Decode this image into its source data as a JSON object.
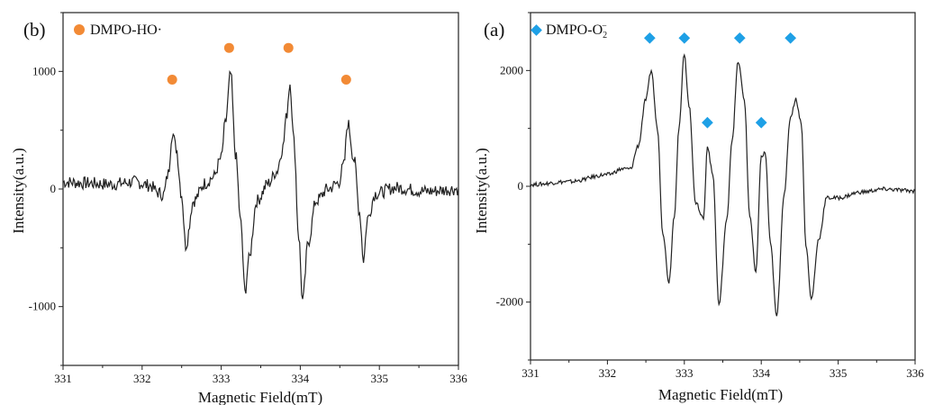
{
  "chart_data": [
    {
      "type": "line",
      "panel_label": "(b)",
      "legend": {
        "label": "DMPO-HO·",
        "marker": "circle",
        "color": "#f28a35"
      },
      "xlabel": "Magnetic Field(mT)",
      "ylabel": "Intensity(a.u.)",
      "xlim": [
        331,
        336
      ],
      "ylim": [
        -1500,
        1500
      ],
      "xticks": [
        331,
        332,
        333,
        334,
        335,
        336
      ],
      "yticks": [
        -1000,
        0,
        1000
      ],
      "grid": false,
      "legend_position": "top-left",
      "line_color": "#222222",
      "series": [
        {
          "x": [
            331.0,
            331.3,
            331.6,
            331.9,
            332.1,
            332.2,
            332.27,
            332.33,
            332.38,
            332.43,
            332.5,
            332.55,
            332.65,
            332.8,
            332.9,
            333.0,
            333.05,
            333.12,
            333.18,
            333.25,
            333.3,
            333.35,
            333.45,
            333.6,
            333.7,
            333.78,
            333.82,
            333.87,
            333.92,
            333.98,
            334.03,
            334.1,
            334.2,
            334.35,
            334.48,
            334.55,
            334.6,
            334.68,
            334.75,
            334.8,
            334.85,
            334.95,
            335.2,
            335.6,
            336.0
          ],
          "y": [
            60,
            50,
            40,
            60,
            30,
            -30,
            -50,
            130,
            480,
            350,
            -50,
            -480,
            -100,
            50,
            100,
            260,
            550,
            980,
            300,
            -300,
            -880,
            -600,
            -100,
            50,
            150,
            350,
            600,
            900,
            400,
            -400,
            -950,
            -450,
            -100,
            0,
            50,
            200,
            560,
            250,
            -200,
            -600,
            -250,
            -40,
            10,
            -20,
            0
          ]
        }
      ],
      "markers": [
        {
          "x": 332.38,
          "y": 930
        },
        {
          "x": 333.1,
          "y": 1200
        },
        {
          "x": 333.85,
          "y": 1200
        },
        {
          "x": 334.58,
          "y": 930
        }
      ]
    },
    {
      "type": "line",
      "panel_label": "(a)",
      "legend": {
        "label": "DMPO-O",
        "label_sub": "2",
        "label_sup": "−",
        "marker": "diamond",
        "color": "#1ea0e6"
      },
      "xlabel": "Magnetic Field(mT)",
      "ylabel": "Intensity(a.u.)",
      "xlim": [
        331,
        336
      ],
      "ylim": [
        -3000,
        3000
      ],
      "xticks": [
        331,
        332,
        333,
        334,
        335,
        336
      ],
      "yticks": [
        -2000,
        0,
        2000
      ],
      "grid": false,
      "legend_position": "top-left",
      "line_color": "#222222",
      "series": [
        {
          "x": [
            331.0,
            331.5,
            332.0,
            332.2,
            332.3,
            332.4,
            332.5,
            332.57,
            332.65,
            332.72,
            332.8,
            332.87,
            332.93,
            333.0,
            333.06,
            333.15,
            333.25,
            333.3,
            333.37,
            333.45,
            333.55,
            333.62,
            333.7,
            333.78,
            333.85,
            333.93,
            334.0,
            334.05,
            334.12,
            334.2,
            334.3,
            334.38,
            334.45,
            334.52,
            334.58,
            334.65,
            334.75,
            334.85,
            335.0,
            335.3,
            335.6,
            336.0
          ],
          "y": [
            30,
            80,
            200,
            300,
            300,
            700,
            1500,
            2000,
            1000,
            -800,
            -1650,
            -500,
            1000,
            2300,
            1400,
            -300,
            -550,
            700,
            200,
            -2050,
            -600,
            800,
            2150,
            1500,
            -500,
            -1500,
            500,
            580,
            -1000,
            -2250,
            -100,
            1200,
            1500,
            1100,
            -1000,
            -1950,
            -900,
            -200,
            -200,
            -100,
            -50,
            -80
          ]
        }
      ],
      "markers_top": [
        {
          "x": 332.55,
          "y": 2560
        },
        {
          "x": 333.0,
          "y": 2560
        },
        {
          "x": 333.72,
          "y": 2560
        },
        {
          "x": 334.38,
          "y": 2560
        }
      ],
      "markers_mid": [
        {
          "x": 333.3,
          "y": 1100
        },
        {
          "x": 334.0,
          "y": 1100
        }
      ]
    }
  ]
}
